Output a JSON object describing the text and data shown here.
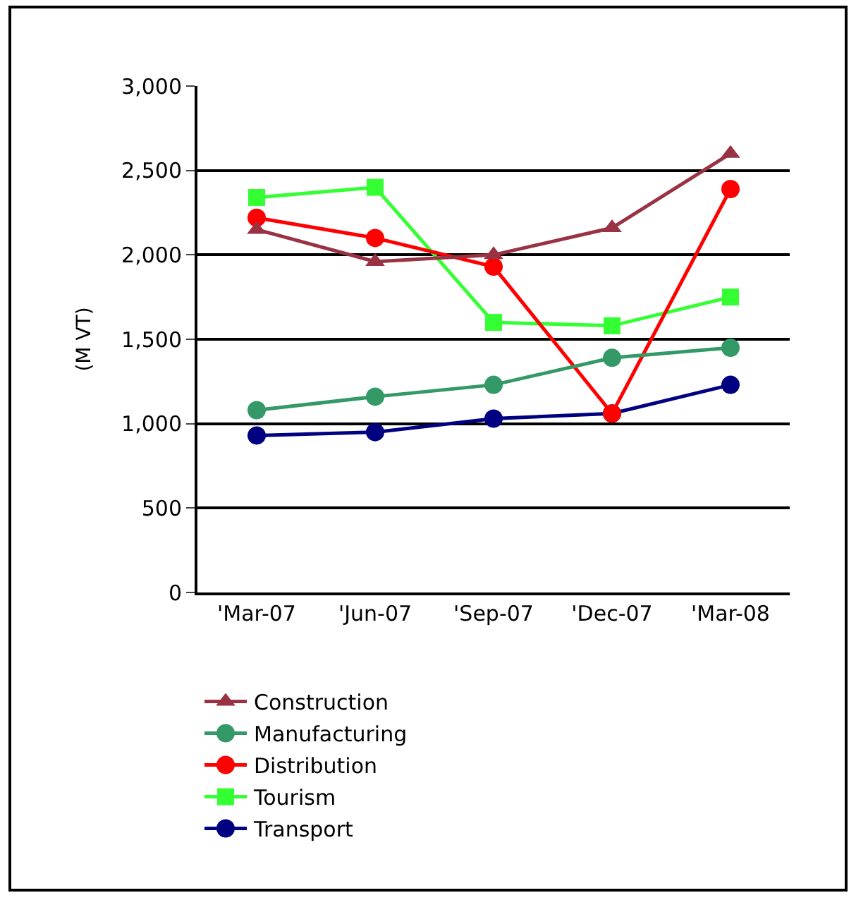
{
  "chart_data": {
    "type": "line",
    "ylabel": "(M VT)",
    "categories": [
      "'Mar-07",
      "'Jun-07",
      "'Sep-07",
      "'Dec-07",
      "'Mar-08"
    ],
    "ylim": [
      0,
      3000
    ],
    "yticks": [
      0,
      500,
      {
        "value": 1000,
        "label": "1,000"
      },
      {
        "value": 1500,
        "label": "1,500"
      },
      {
        "value": 2000,
        "label": "2,000"
      },
      {
        "value": 2500,
        "label": "2,500"
      },
      {
        "value": 3000,
        "label": "3,000"
      }
    ],
    "grid": "y",
    "legend": "bottom",
    "series": [
      {
        "name": "Construction",
        "color": "#993344",
        "marker": "triangle",
        "values": [
          2150,
          1960,
          2000,
          2160,
          2600
        ]
      },
      {
        "name": "Manufacturing",
        "color": "#339966",
        "marker": "circle",
        "values": [
          1080,
          1160,
          1230,
          1390,
          1450
        ]
      },
      {
        "name": "Distribution",
        "color": "#ff0000",
        "marker": "circle",
        "values": [
          2220,
          2100,
          1930,
          1060,
          2390
        ]
      },
      {
        "name": "Tourism",
        "color": "#33ff33",
        "marker": "square",
        "values": [
          2340,
          2400,
          1600,
          1580,
          1750
        ]
      },
      {
        "name": "Transport",
        "color": "#000080",
        "marker": "circle",
        "values": [
          930,
          950,
          1030,
          1060,
          1230
        ]
      }
    ]
  }
}
